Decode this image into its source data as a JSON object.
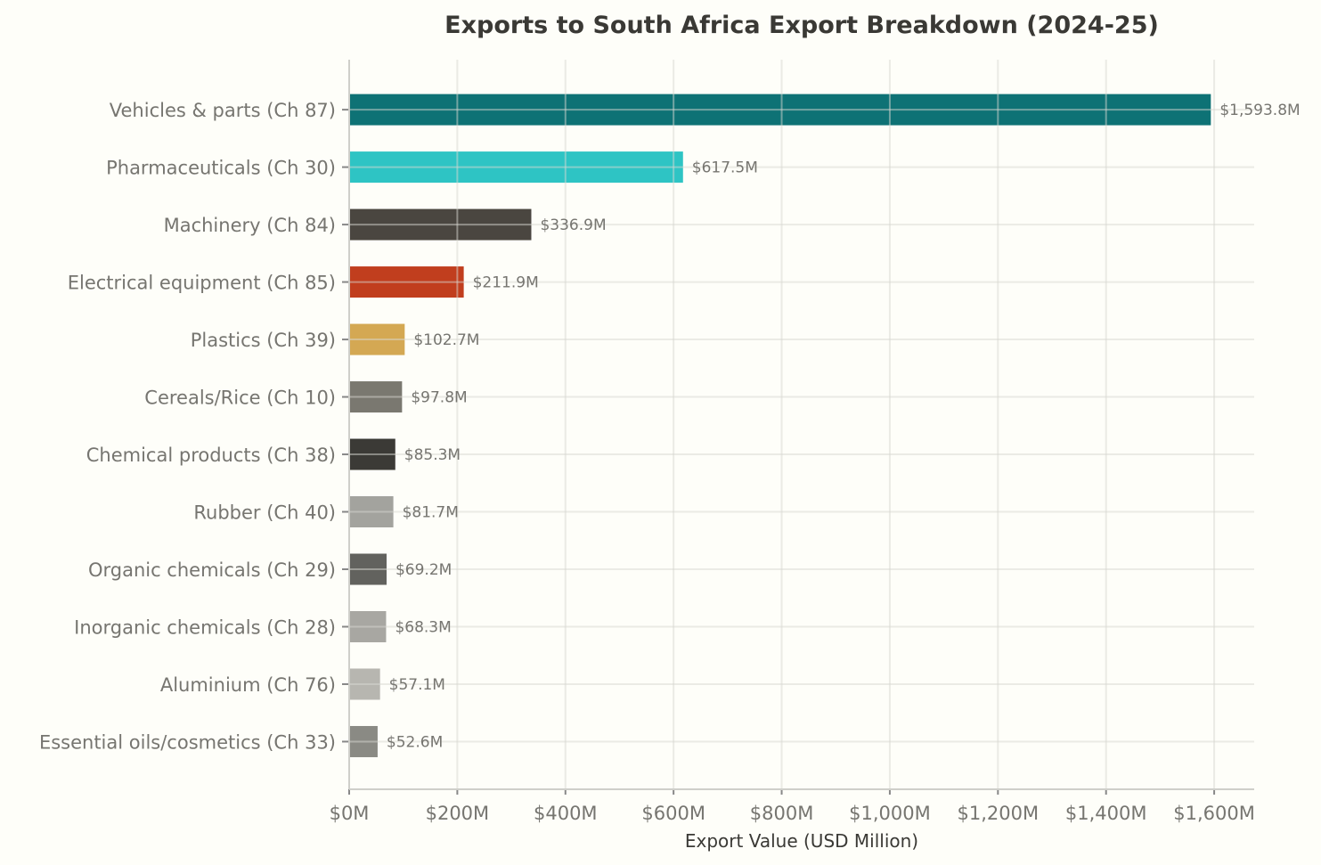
{
  "chart_data": {
    "type": "bar",
    "orientation": "horizontal",
    "title": "Exports to South Africa Export Breakdown (2024-25)",
    "xlabel": "Export Value (USD Million)",
    "ylabel": "",
    "xlim": [
      0,
      1674
    ],
    "grid": true,
    "categories": [
      "Vehicles & parts (Ch 87)",
      "Pharmaceuticals (Ch 30)",
      "Machinery (Ch 84)",
      "Electrical equipment (Ch 85)",
      "Plastics (Ch 39)",
      "Cereals/Rice (Ch 10)",
      "Chemical products (Ch 38)",
      "Rubber (Ch 40)",
      "Organic chemicals (Ch 29)",
      "Inorganic chemicals (Ch 28)",
      "Aluminium (Ch 76)",
      "Essential oils/cosmetics (Ch 33)"
    ],
    "values": [
      1593.8,
      617.5,
      336.9,
      211.9,
      102.7,
      97.8,
      85.3,
      81.7,
      69.2,
      68.3,
      57.1,
      52.6
    ],
    "data_labels": [
      "$1,593.8M",
      "$617.5M",
      "$336.9M",
      "$211.9M",
      "$102.7M",
      "$97.8M",
      "$85.3M",
      "$81.7M",
      "$69.2M",
      "$68.3M",
      "$57.1M",
      "$52.6M"
    ],
    "colors": [
      "#0e7275",
      "#2ec4c4",
      "#4a4640",
      "#c13e1e",
      "#d4a853",
      "#7a7870",
      "#3b3a36",
      "#a3a39e",
      "#62625e",
      "#a8a7a2",
      "#b7b6b0",
      "#8a8a84"
    ],
    "xticks": [
      0,
      200,
      400,
      600,
      800,
      1000,
      1200,
      1400,
      1600
    ],
    "xtick_labels": [
      "$0M",
      "$200M",
      "$400M",
      "$600M",
      "$800M",
      "$1,000M",
      "$1,200M",
      "$1,400M",
      "$1,600M"
    ]
  }
}
